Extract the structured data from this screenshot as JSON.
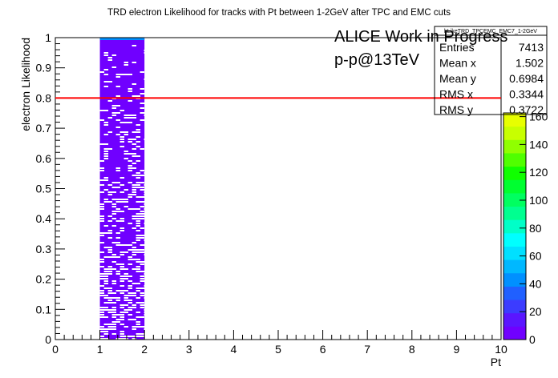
{
  "chart_data": {
    "type": "heatmap",
    "title": "TRD electron Likelihood for tracks with Pt between 1-2GeV after TPC and EMC cuts",
    "xlabel": "Pt",
    "ylabel": "electron Likelihood",
    "xlim": [
      0,
      10
    ],
    "ylim": [
      0,
      1
    ],
    "x_ticks": [
      "0",
      "1",
      "2",
      "3",
      "4",
      "5",
      "6",
      "7",
      "8",
      "9",
      "10"
    ],
    "y_ticks": [
      "0",
      "0.1",
      "0.2",
      "0.3",
      "0.4",
      "0.5",
      "0.6",
      "0.7",
      "0.8",
      "0.9",
      "1"
    ],
    "filled_x_range": [
      1,
      2
    ],
    "cut_line": {
      "y": 0.8,
      "color": "#ff0000"
    },
    "annotations": [
      "ALICE Work in Progress",
      "p-p@13TeV"
    ],
    "stats_box": {
      "name": "hLikeTRD_TPCEMC_EMC7_1-2GeV",
      "rows": [
        {
          "label": "Entries",
          "value": "7413"
        },
        {
          "label": "Mean x",
          "value": "1.502"
        },
        {
          "label": "Mean y",
          "value": "0.6984"
        },
        {
          "label": "RMS x",
          "value": "0.3344"
        },
        {
          "label": "RMS y",
          "value": "0.3722"
        }
      ]
    },
    "color_scale": {
      "min": 0,
      "ticks": [
        "0",
        "20",
        "40",
        "60",
        "80",
        "100",
        "120",
        "140",
        "160"
      ],
      "colors": [
        "#7000ff",
        "#5a16ff",
        "#3c3cff",
        "#2060ff",
        "#0090ff",
        "#00b8ff",
        "#00e0ff",
        "#00ffff",
        "#00ffc8",
        "#00ff90",
        "#00ff60",
        "#00ff30",
        "#10ff00",
        "#50ff00",
        "#90ff00",
        "#c8ff00",
        "#e8ff00"
      ]
    },
    "grid": false
  }
}
